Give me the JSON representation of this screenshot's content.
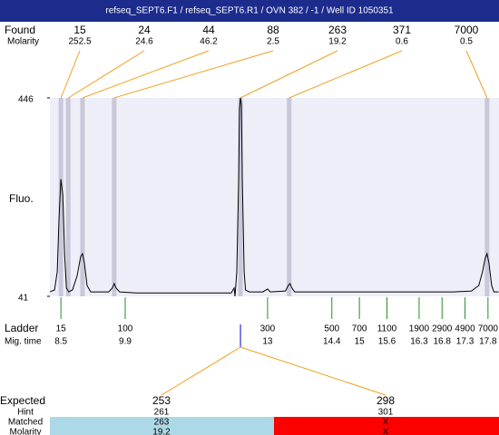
{
  "header": {
    "title": "refseq_SEPT6.F1 / refseq_SEPT6.R1 / OVN 382 / -1 / Well ID 1050351"
  },
  "found": {
    "label": "Found",
    "molarity_label": "Molarity",
    "peaks": [
      {
        "size": 15,
        "molarity": 252.5,
        "time": 8.5
      },
      {
        "size": 24,
        "molarity": 24.6,
        "time": 8.66
      },
      {
        "size": 44,
        "molarity": 46.2,
        "time": 8.97
      },
      {
        "size": 88,
        "molarity": 2.5,
        "time": 9.66
      },
      {
        "size": 263,
        "molarity": 19.2,
        "time": 12.41
      },
      {
        "size": 371,
        "molarity": 0.6,
        "time": 13.47
      },
      {
        "size": 7000,
        "molarity": 0.5,
        "time": 17.78
      }
    ]
  },
  "trace": {
    "ylabel": "Fluo.",
    "xlim": [
      8.26,
      18.04
    ],
    "ylim": [
      41,
      446
    ],
    "yticks": [
      446,
      41
    ],
    "x": [
      8.26,
      8.36,
      8.42,
      8.46,
      8.5,
      8.54,
      8.58,
      8.62,
      8.67,
      8.75,
      8.85,
      8.93,
      8.97,
      9.01,
      9.07,
      9.15,
      9.35,
      9.54,
      9.62,
      9.66,
      9.7,
      9.78,
      10.14,
      11.12,
      11.91,
      12.21,
      12.27,
      12.29,
      12.33,
      12.37,
      12.39,
      12.41,
      12.43,
      12.45,
      12.49,
      12.52,
      12.6,
      12.9,
      13.0,
      13.06,
      13.39,
      13.45,
      13.49,
      13.53,
      13.59,
      14.08,
      15.07,
      16.06,
      17.05,
      17.44,
      17.6,
      17.68,
      17.74,
      17.78,
      17.82,
      17.88,
      17.93,
      18.03
    ],
    "values": [
      50,
      54,
      91,
      202,
      280,
      248,
      128,
      58,
      50,
      54,
      82,
      122,
      128,
      109,
      63,
      50,
      50,
      50,
      58,
      67,
      58,
      50,
      48,
      48,
      48,
      48,
      58,
      41,
      91,
      276,
      424,
      446,
      433,
      276,
      91,
      54,
      50,
      50,
      56,
      50,
      52,
      63,
      67,
      58,
      50,
      50,
      50,
      50,
      50,
      52,
      63,
      91,
      119,
      128,
      109,
      63,
      50,
      50
    ]
  },
  "ladder": {
    "label": "Ladder",
    "time_label": "Mig. time",
    "sizes": [
      15,
      100,
      300,
      500,
      700,
      1100,
      1900,
      2900,
      4900,
      7000
    ],
    "times": [
      8.5,
      9.9,
      13,
      14.4,
      15,
      15.6,
      16.3,
      16.8,
      17.3,
      17.8
    ]
  },
  "expected": {
    "label": "Expected",
    "hint_label": "Hint",
    "matched_label": "Matched",
    "molarity_label": "Molarity",
    "columns": [
      {
        "size": 253,
        "hint": 261,
        "matched": 263,
        "molarity": 19.2
      },
      {
        "size": 298,
        "hint": 301,
        "matched": "X",
        "molarity": "X"
      }
    ]
  }
}
